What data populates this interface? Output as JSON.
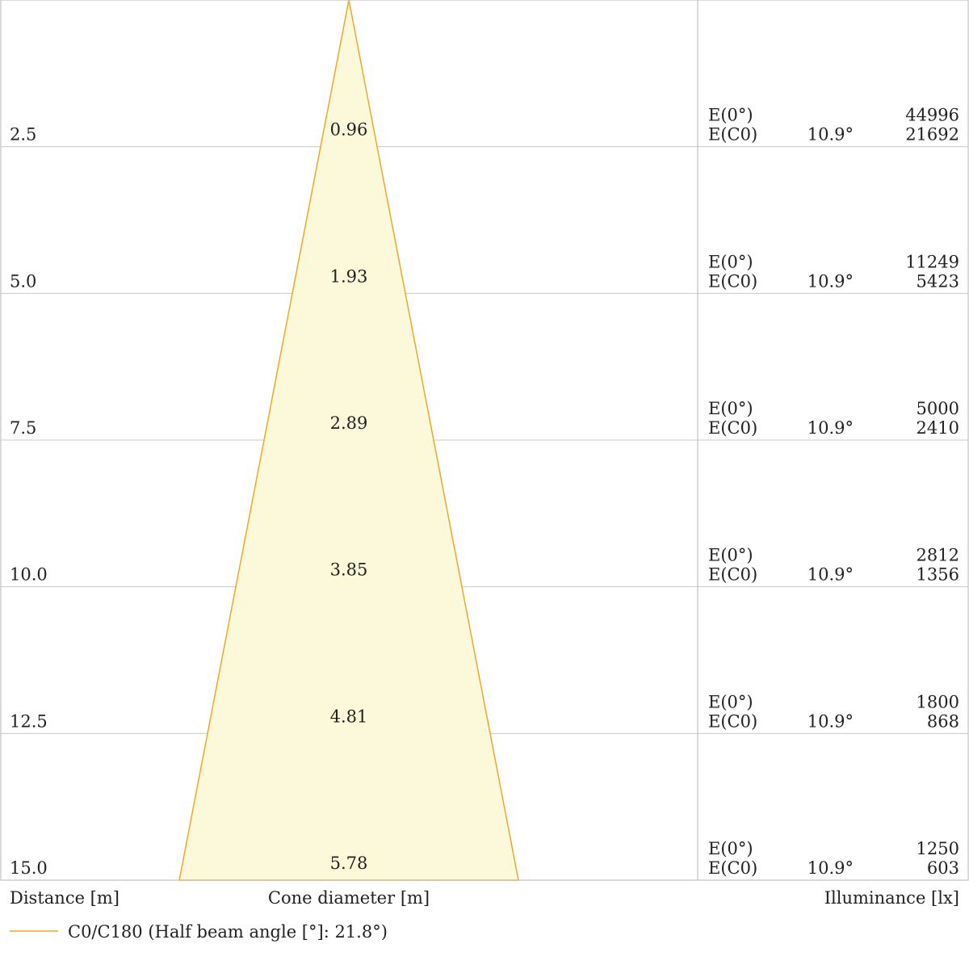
{
  "chart_data": {
    "type": "cone",
    "xlabel": "Distance [m]",
    "cone_label": "Cone diameter [m]",
    "ylabel": "Illuminance [lx]",
    "legend": "C0/C180 (Half beam angle [°]: 21.8°)",
    "cone_color": "#f5a623",
    "cone_fill": "#fbf9d9",
    "max_distance": 15.0,
    "max_diameter": 5.78,
    "rows": [
      {
        "distance": "2.5",
        "diameter": "0.96",
        "label_e0": "E(0°)",
        "label_ec0": "E(C0)",
        "angle": "10.9°",
        "e0": "44996",
        "ec0": "21692"
      },
      {
        "distance": "5.0",
        "diameter": "1.93",
        "label_e0": "E(0°)",
        "label_ec0": "E(C0)",
        "angle": "10.9°",
        "e0": "11249",
        "ec0": "5423"
      },
      {
        "distance": "7.5",
        "diameter": "2.89",
        "label_e0": "E(0°)",
        "label_ec0": "E(C0)",
        "angle": "10.9°",
        "e0": "5000",
        "ec0": "2410"
      },
      {
        "distance": "10.0",
        "diameter": "3.85",
        "label_e0": "E(0°)",
        "label_ec0": "E(C0)",
        "angle": "10.9°",
        "e0": "2812",
        "ec0": "1356"
      },
      {
        "distance": "12.5",
        "diameter": "4.81",
        "label_e0": "E(0°)",
        "label_ec0": "E(C0)",
        "angle": "10.9°",
        "e0": "1800",
        "ec0": "868"
      },
      {
        "distance": "15.0",
        "diameter": "5.78",
        "label_e0": "E(0°)",
        "label_ec0": "E(C0)",
        "angle": "10.9°",
        "e0": "1250",
        "ec0": "603"
      }
    ]
  }
}
